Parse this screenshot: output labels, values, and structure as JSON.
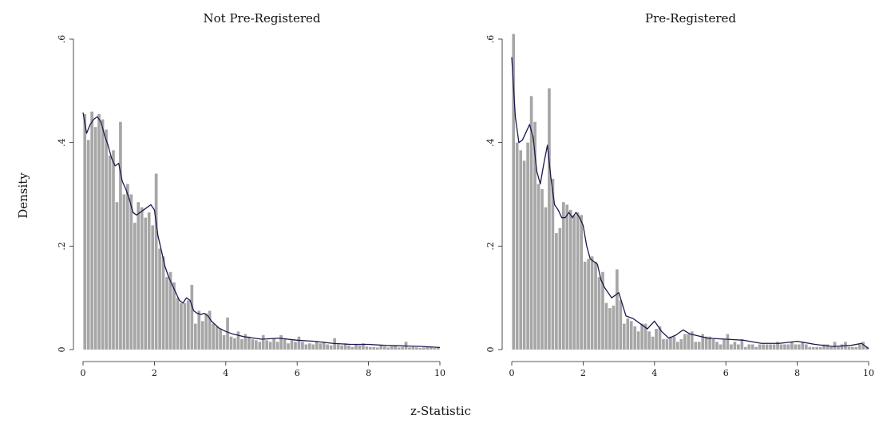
{
  "figure": {
    "xlabel": "z-Statistic",
    "ylabel": "Density"
  },
  "chart_data": [
    {
      "type": "bar",
      "title": "Not Pre-Registered",
      "xlabel": "z-Statistic",
      "ylabel": "Density",
      "xlim": [
        0,
        10
      ],
      "ylim": [
        0,
        0.6
      ],
      "xticks": [
        0,
        2,
        4,
        6,
        8,
        10
      ],
      "xtick_labels": [
        "0",
        "2",
        "4",
        "6",
        "8",
        "10"
      ],
      "yticks": [
        0,
        0.2,
        0.4,
        0.6
      ],
      "ytick_labels": [
        "0",
        ".2",
        ".4",
        ".6"
      ],
      "grid": false,
      "bin_width": 0.1,
      "bar_color": "#a6a6a6",
      "line_color": "#1a1a4e",
      "values": [
        0.455,
        0.405,
        0.46,
        0.43,
        0.455,
        0.445,
        0.425,
        0.375,
        0.385,
        0.285,
        0.44,
        0.3,
        0.32,
        0.3,
        0.245,
        0.285,
        0.275,
        0.255,
        0.265,
        0.24,
        0.34,
        0.195,
        0.18,
        0.14,
        0.15,
        0.13,
        0.1,
        0.09,
        0.09,
        0.095,
        0.125,
        0.05,
        0.075,
        0.055,
        0.07,
        0.075,
        0.05,
        0.045,
        0.04,
        0.028,
        0.062,
        0.025,
        0.022,
        0.035,
        0.02,
        0.03,
        0.025,
        0.02,
        0.018,
        0.015,
        0.028,
        0.018,
        0.015,
        0.022,
        0.015,
        0.028,
        0.02,
        0.012,
        0.018,
        0.015,
        0.025,
        0.015,
        0.01,
        0.012,
        0.01,
        0.015,
        0.012,
        0.015,
        0.01,
        0.008,
        0.022,
        0.01,
        0.008,
        0.012,
        0.008,
        0.005,
        0.01,
        0.008,
        0.012,
        0.006,
        0.005,
        0.005,
        0.004,
        0.008,
        0.006,
        0.004,
        0.006,
        0.008,
        0.004,
        0.005,
        0.015,
        0.004,
        0.005,
        0.004,
        0.003,
        0.004,
        0.005,
        0.004,
        0.003,
        0.004
      ],
      "kde_x": [
        0,
        0.1,
        0.2,
        0.3,
        0.4,
        0.5,
        0.6,
        0.7,
        0.8,
        0.9,
        1.0,
        1.1,
        1.2,
        1.3,
        1.4,
        1.5,
        1.6,
        1.7,
        1.8,
        1.9,
        2.0,
        2.1,
        2.2,
        2.3,
        2.4,
        2.5,
        2.6,
        2.7,
        2.8,
        2.9,
        3.0,
        3.1,
        3.2,
        3.3,
        3.4,
        3.5,
        3.6,
        3.8,
        4.0,
        4.2,
        4.5,
        5.0,
        5.5,
        6.0,
        6.5,
        7.0,
        7.5,
        8.0,
        8.5,
        9.0,
        9.5,
        10.0
      ],
      "kde_y": [
        0.458,
        0.418,
        0.435,
        0.445,
        0.45,
        0.44,
        0.415,
        0.395,
        0.37,
        0.355,
        0.36,
        0.325,
        0.31,
        0.29,
        0.265,
        0.26,
        0.265,
        0.27,
        0.275,
        0.28,
        0.27,
        0.22,
        0.19,
        0.16,
        0.14,
        0.125,
        0.11,
        0.095,
        0.09,
        0.1,
        0.095,
        0.075,
        0.07,
        0.068,
        0.07,
        0.065,
        0.055,
        0.042,
        0.035,
        0.03,
        0.025,
        0.02,
        0.022,
        0.018,
        0.016,
        0.012,
        0.01,
        0.01,
        0.008,
        0.007,
        0.006,
        0.004
      ]
    },
    {
      "type": "bar",
      "title": "Pre-Registered",
      "xlabel": "z-Statistic",
      "ylabel": "Density",
      "xlim": [
        0,
        10
      ],
      "ylim": [
        0,
        0.6
      ],
      "xticks": [
        0,
        2,
        4,
        6,
        8,
        10
      ],
      "xtick_labels": [
        "0",
        "2",
        "4",
        "6",
        "8",
        "10"
      ],
      "yticks": [
        0,
        0.2,
        0.4,
        0.6
      ],
      "ytick_labels": [
        "0",
        ".2",
        ".4",
        ".6"
      ],
      "grid": false,
      "bin_width": 0.1,
      "bar_color": "#a6a6a6",
      "line_color": "#1a1a4e",
      "values": [
        0.61,
        0.4,
        0.385,
        0.365,
        0.4,
        0.49,
        0.44,
        0.32,
        0.31,
        0.275,
        0.505,
        0.33,
        0.225,
        0.235,
        0.285,
        0.28,
        0.27,
        0.26,
        0.265,
        0.26,
        0.17,
        0.175,
        0.18,
        0.17,
        0.14,
        0.15,
        0.09,
        0.08,
        0.085,
        0.155,
        0.095,
        0.05,
        0.06,
        0.055,
        0.045,
        0.035,
        0.05,
        0.05,
        0.035,
        0.025,
        0.04,
        0.045,
        0.02,
        0.02,
        0.025,
        0.025,
        0.015,
        0.02,
        0.03,
        0.03,
        0.035,
        0.015,
        0.015,
        0.03,
        0.025,
        0.025,
        0.02,
        0.015,
        0.01,
        0.02,
        0.03,
        0.01,
        0.015,
        0.01,
        0.02,
        0.005,
        0.01,
        0.01,
        0.005,
        0.01,
        0.01,
        0.01,
        0.01,
        0.01,
        0.015,
        0.01,
        0.01,
        0.01,
        0.015,
        0.01,
        0.01,
        0.015,
        0.01,
        0.005,
        0.005,
        0.005,
        0.005,
        0.01,
        0.01,
        0.005,
        0.015,
        0.005,
        0.01,
        0.015,
        0.005,
        0.005,
        0.005,
        0.01,
        0.015,
        0.005
      ],
      "kde_x": [
        0,
        0.1,
        0.2,
        0.3,
        0.4,
        0.5,
        0.6,
        0.7,
        0.8,
        0.9,
        1.0,
        1.1,
        1.2,
        1.3,
        1.4,
        1.5,
        1.6,
        1.7,
        1.8,
        1.9,
        2.0,
        2.1,
        2.2,
        2.3,
        2.4,
        2.5,
        2.6,
        2.8,
        3.0,
        3.2,
        3.4,
        3.6,
        3.8,
        4.0,
        4.2,
        4.4,
        4.6,
        4.8,
        5.0,
        5.5,
        6.0,
        6.5,
        7.0,
        7.5,
        8.0,
        8.5,
        9.0,
        9.5,
        9.8,
        10.0
      ],
      "kde_y": [
        0.565,
        0.45,
        0.4,
        0.405,
        0.42,
        0.435,
        0.41,
        0.345,
        0.32,
        0.36,
        0.395,
        0.33,
        0.28,
        0.27,
        0.255,
        0.255,
        0.265,
        0.255,
        0.265,
        0.255,
        0.24,
        0.2,
        0.175,
        0.17,
        0.165,
        0.135,
        0.12,
        0.1,
        0.11,
        0.065,
        0.06,
        0.05,
        0.04,
        0.055,
        0.035,
        0.022,
        0.028,
        0.038,
        0.03,
        0.022,
        0.02,
        0.018,
        0.012,
        0.012,
        0.016,
        0.01,
        0.006,
        0.008,
        0.012,
        0.002
      ]
    }
  ]
}
